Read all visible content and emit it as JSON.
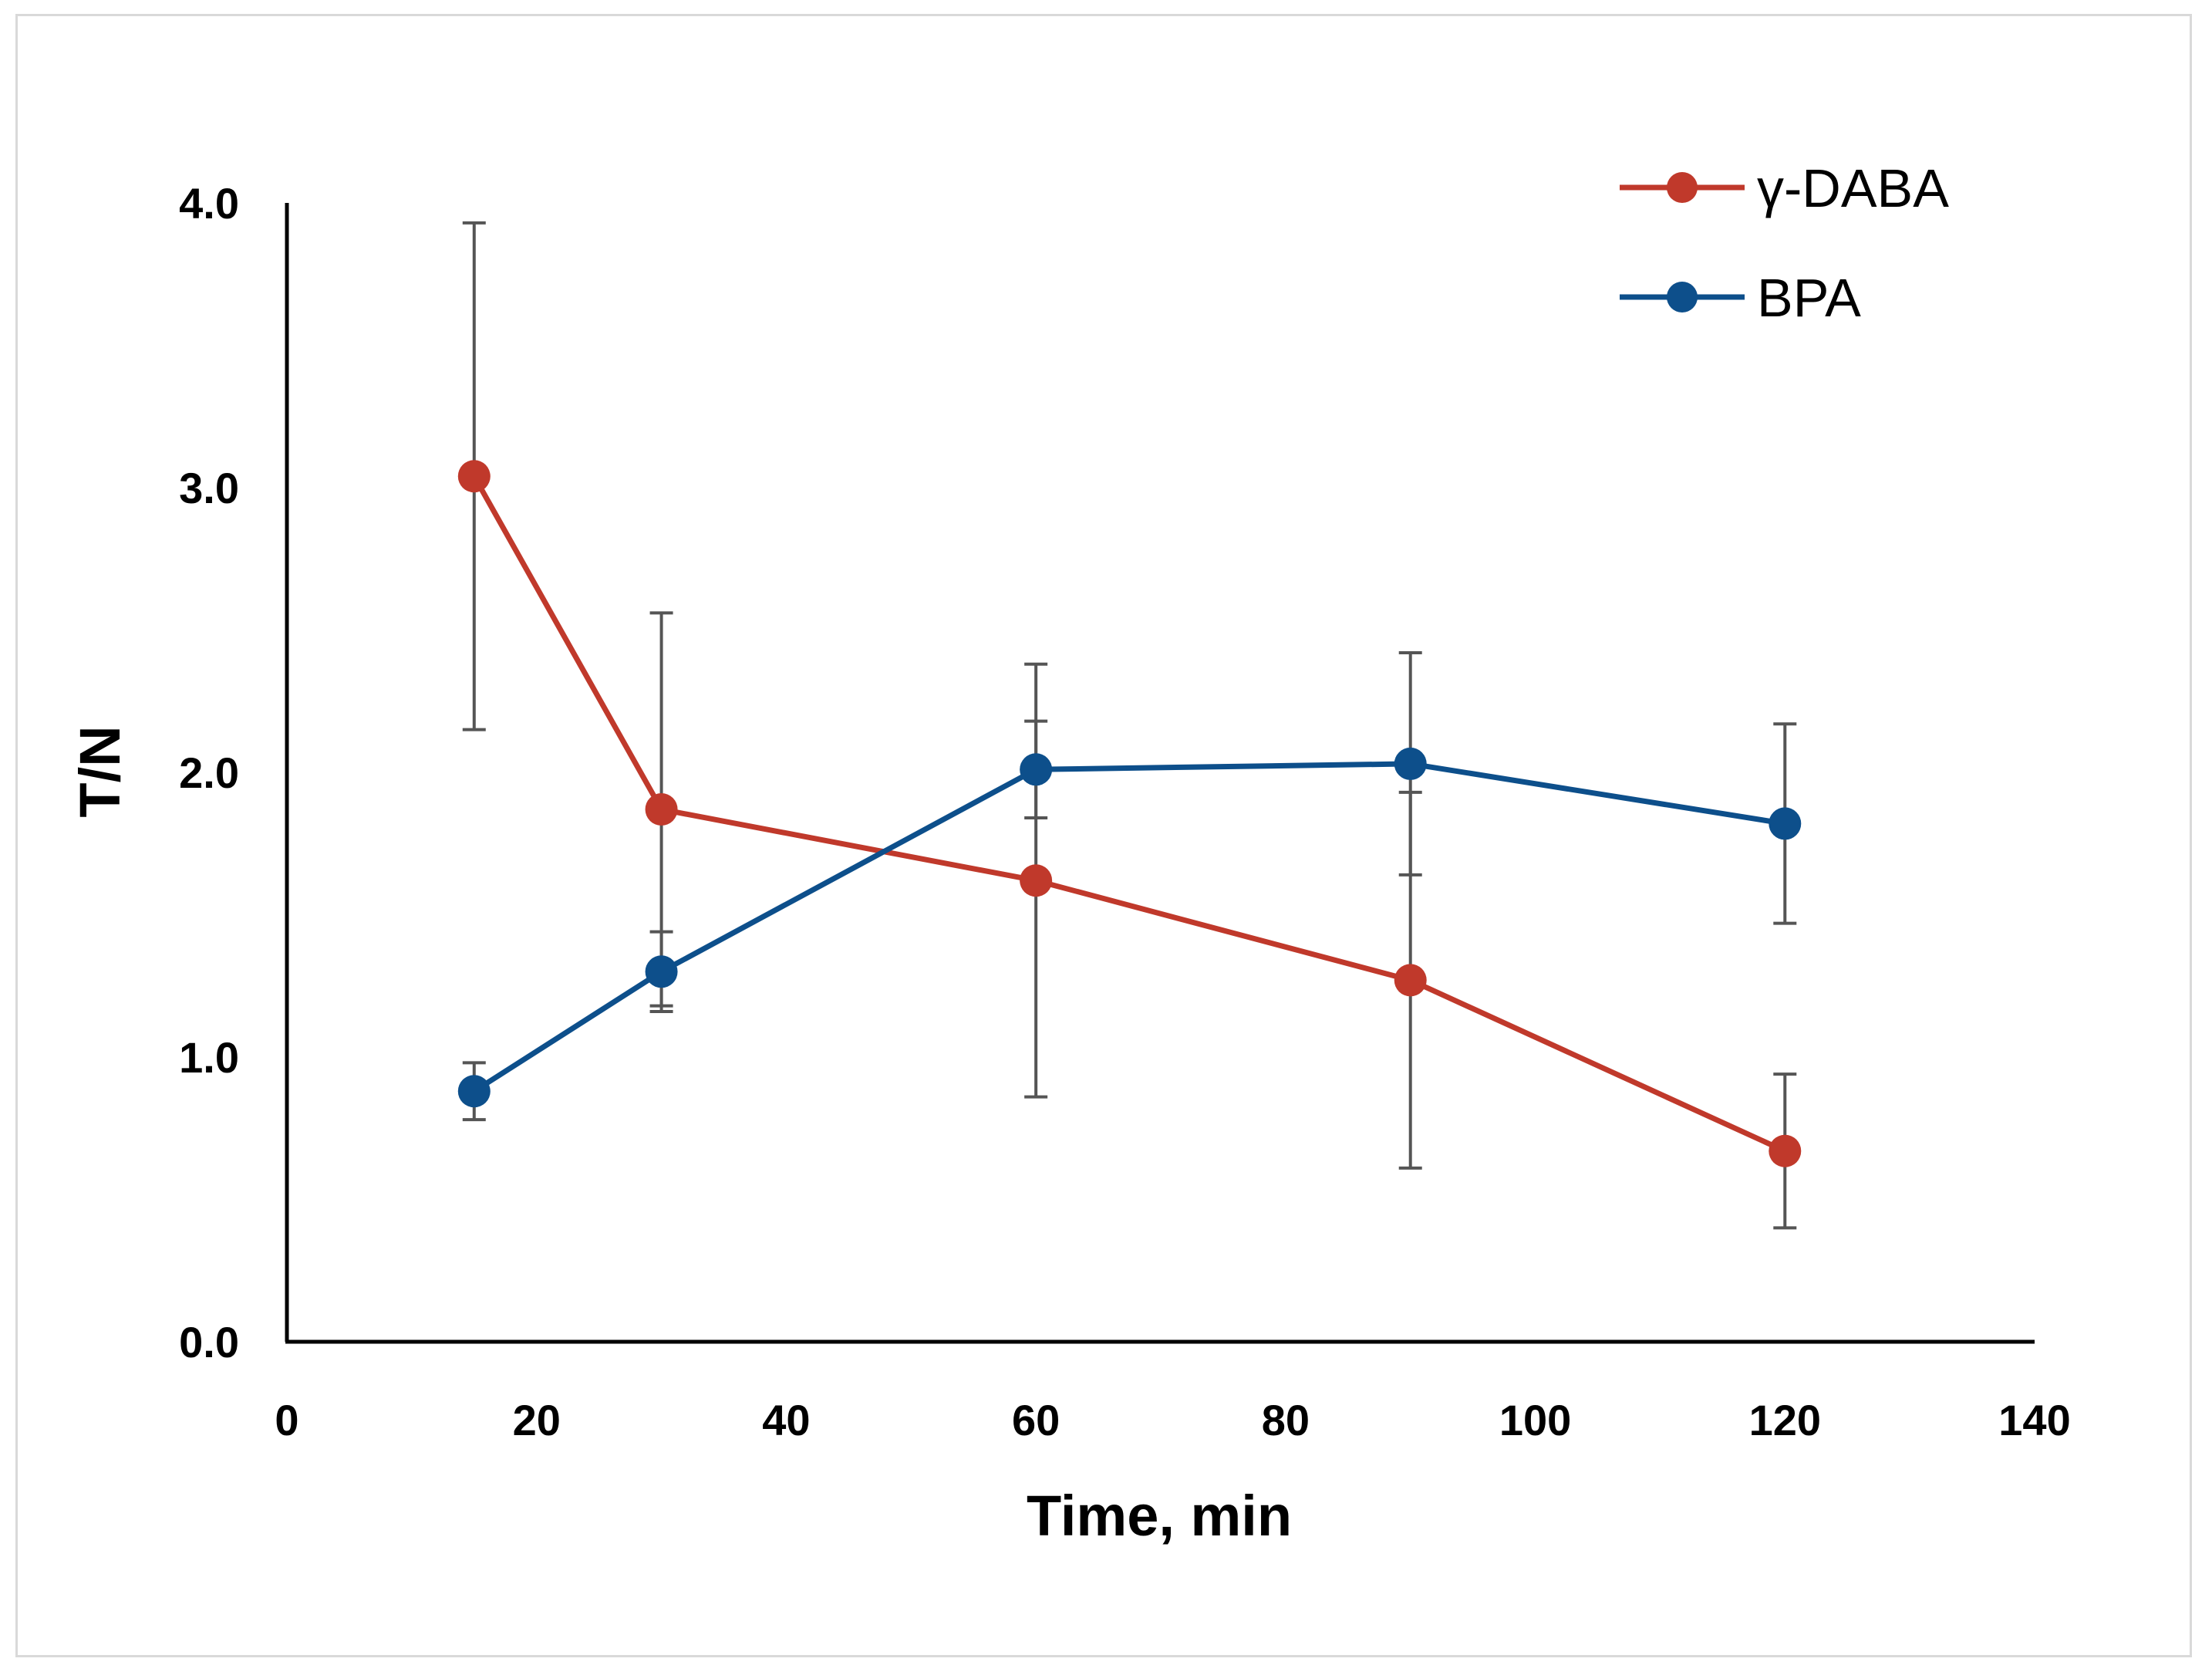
{
  "chart_data": {
    "type": "line",
    "title": "",
    "xlabel": "Time, min",
    "ylabel": "T/N",
    "xlim": [
      0,
      140
    ],
    "ylim": [
      0,
      4
    ],
    "x_ticks": [
      0,
      20,
      40,
      60,
      80,
      100,
      120,
      140
    ],
    "y_ticks": [
      0,
      1,
      2,
      3,
      4
    ],
    "x_tick_labels": [
      "0",
      "20",
      "40",
      "60",
      "80",
      "100",
      "120",
      "140"
    ],
    "y_tick_labels": [
      "0.0",
      "1.0",
      "2.0",
      "3.0",
      "4.0"
    ],
    "grid": false,
    "legend_position": "top-right",
    "series": [
      {
        "name": "γ-DABA",
        "color": "#c0392b",
        "x": [
          15,
          30,
          60,
          90,
          120
        ],
        "y": [
          3.04,
          1.87,
          1.62,
          1.27,
          0.67
        ],
        "error": [
          0.89,
          0.69,
          0.76,
          0.66,
          0.27
        ]
      },
      {
        "name": "BPA",
        "color": "#0d4f8b",
        "x": [
          15,
          30,
          60,
          90,
          120
        ],
        "y": [
          0.88,
          1.3,
          2.01,
          2.03,
          1.82
        ],
        "error": [
          0.1,
          0.14,
          0.17,
          0.39,
          0.35
        ]
      }
    ]
  }
}
